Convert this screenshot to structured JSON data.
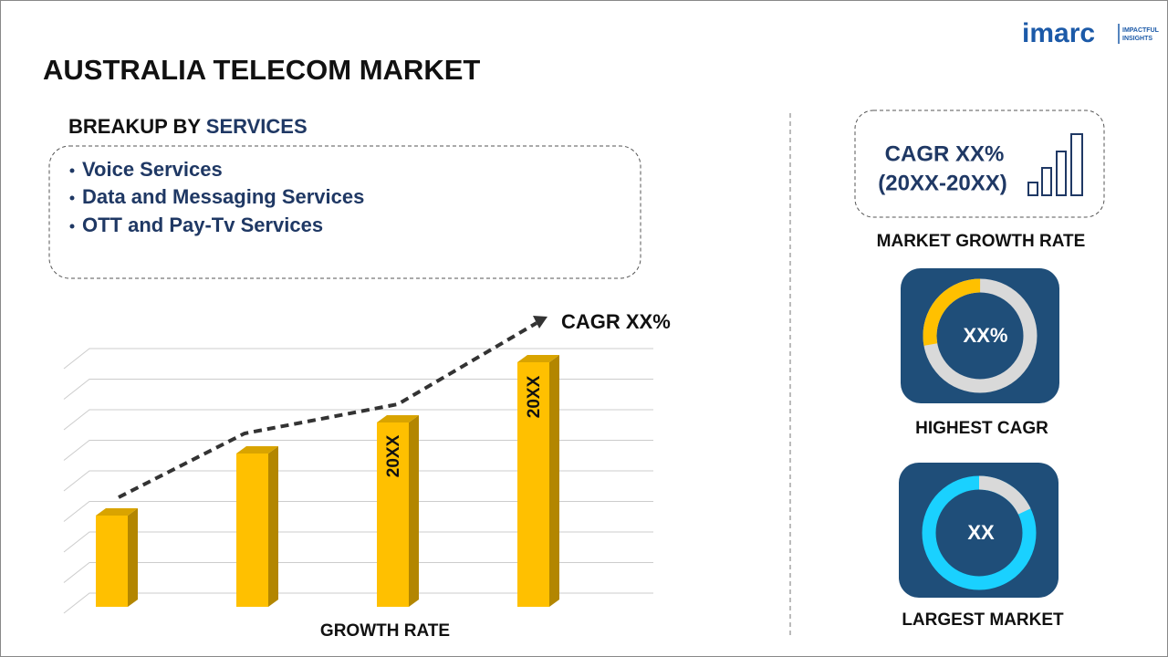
{
  "logo": {
    "brand": "imarc",
    "tagline": [
      "IMPACTFUL",
      "INSIGHTS"
    ]
  },
  "title": "AUSTRALIA TELECOM MARKET",
  "breakup": {
    "prefix": "BREAKUP BY",
    "highlight": "SERVICES",
    "items": [
      "Voice Services",
      "Data and Messaging Services",
      "OTT and Pay-Tv Services"
    ]
  },
  "growth_chart": {
    "cagr": "CAGR XX%",
    "bar_labels": [
      "20XX",
      "20XX"
    ],
    "axis_label": "GROWTH RATE"
  },
  "cards": [
    {
      "lines": [
        "CAGR XX%",
        "(20XX-20XX)"
      ],
      "label": "MARKET GROWTH RATE"
    },
    {
      "value": "XX%",
      "label": "HIGHEST CAGR"
    },
    {
      "value": "XX",
      "label": "LARGEST MARKET"
    }
  ]
}
